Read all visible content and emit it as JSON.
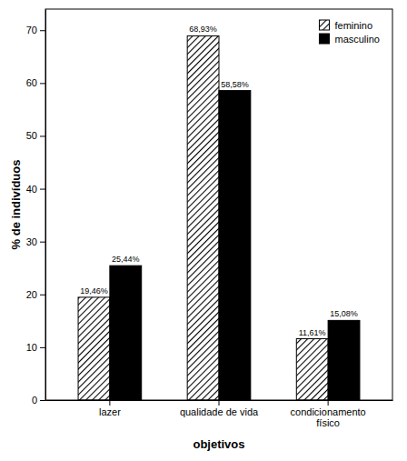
{
  "chart_data": {
    "type": "bar",
    "x_label": "objetivos",
    "y_label": "% de indivíduos",
    "categories": [
      "lazer",
      "qualidade de vida",
      "condicionamento físico"
    ],
    "series": [
      {
        "name": "feminino",
        "color": "#ffffff",
        "values": [
          19.46,
          68.93,
          11.61
        ],
        "value_labels": [
          "19,46%",
          "68,93%",
          "11,61%"
        ]
      },
      {
        "name": "masculino",
        "color": "#000000",
        "values": [
          25.44,
          58.58,
          15.08
        ],
        "value_labels": [
          "25,44%",
          "58,58%",
          "15,08%"
        ]
      }
    ],
    "ylim": [
      0,
      74
    ],
    "yticks": [
      0,
      10,
      20,
      30,
      40,
      50,
      60,
      70
    ],
    "grid": false,
    "legend": "upper right",
    "data_labels": true
  }
}
